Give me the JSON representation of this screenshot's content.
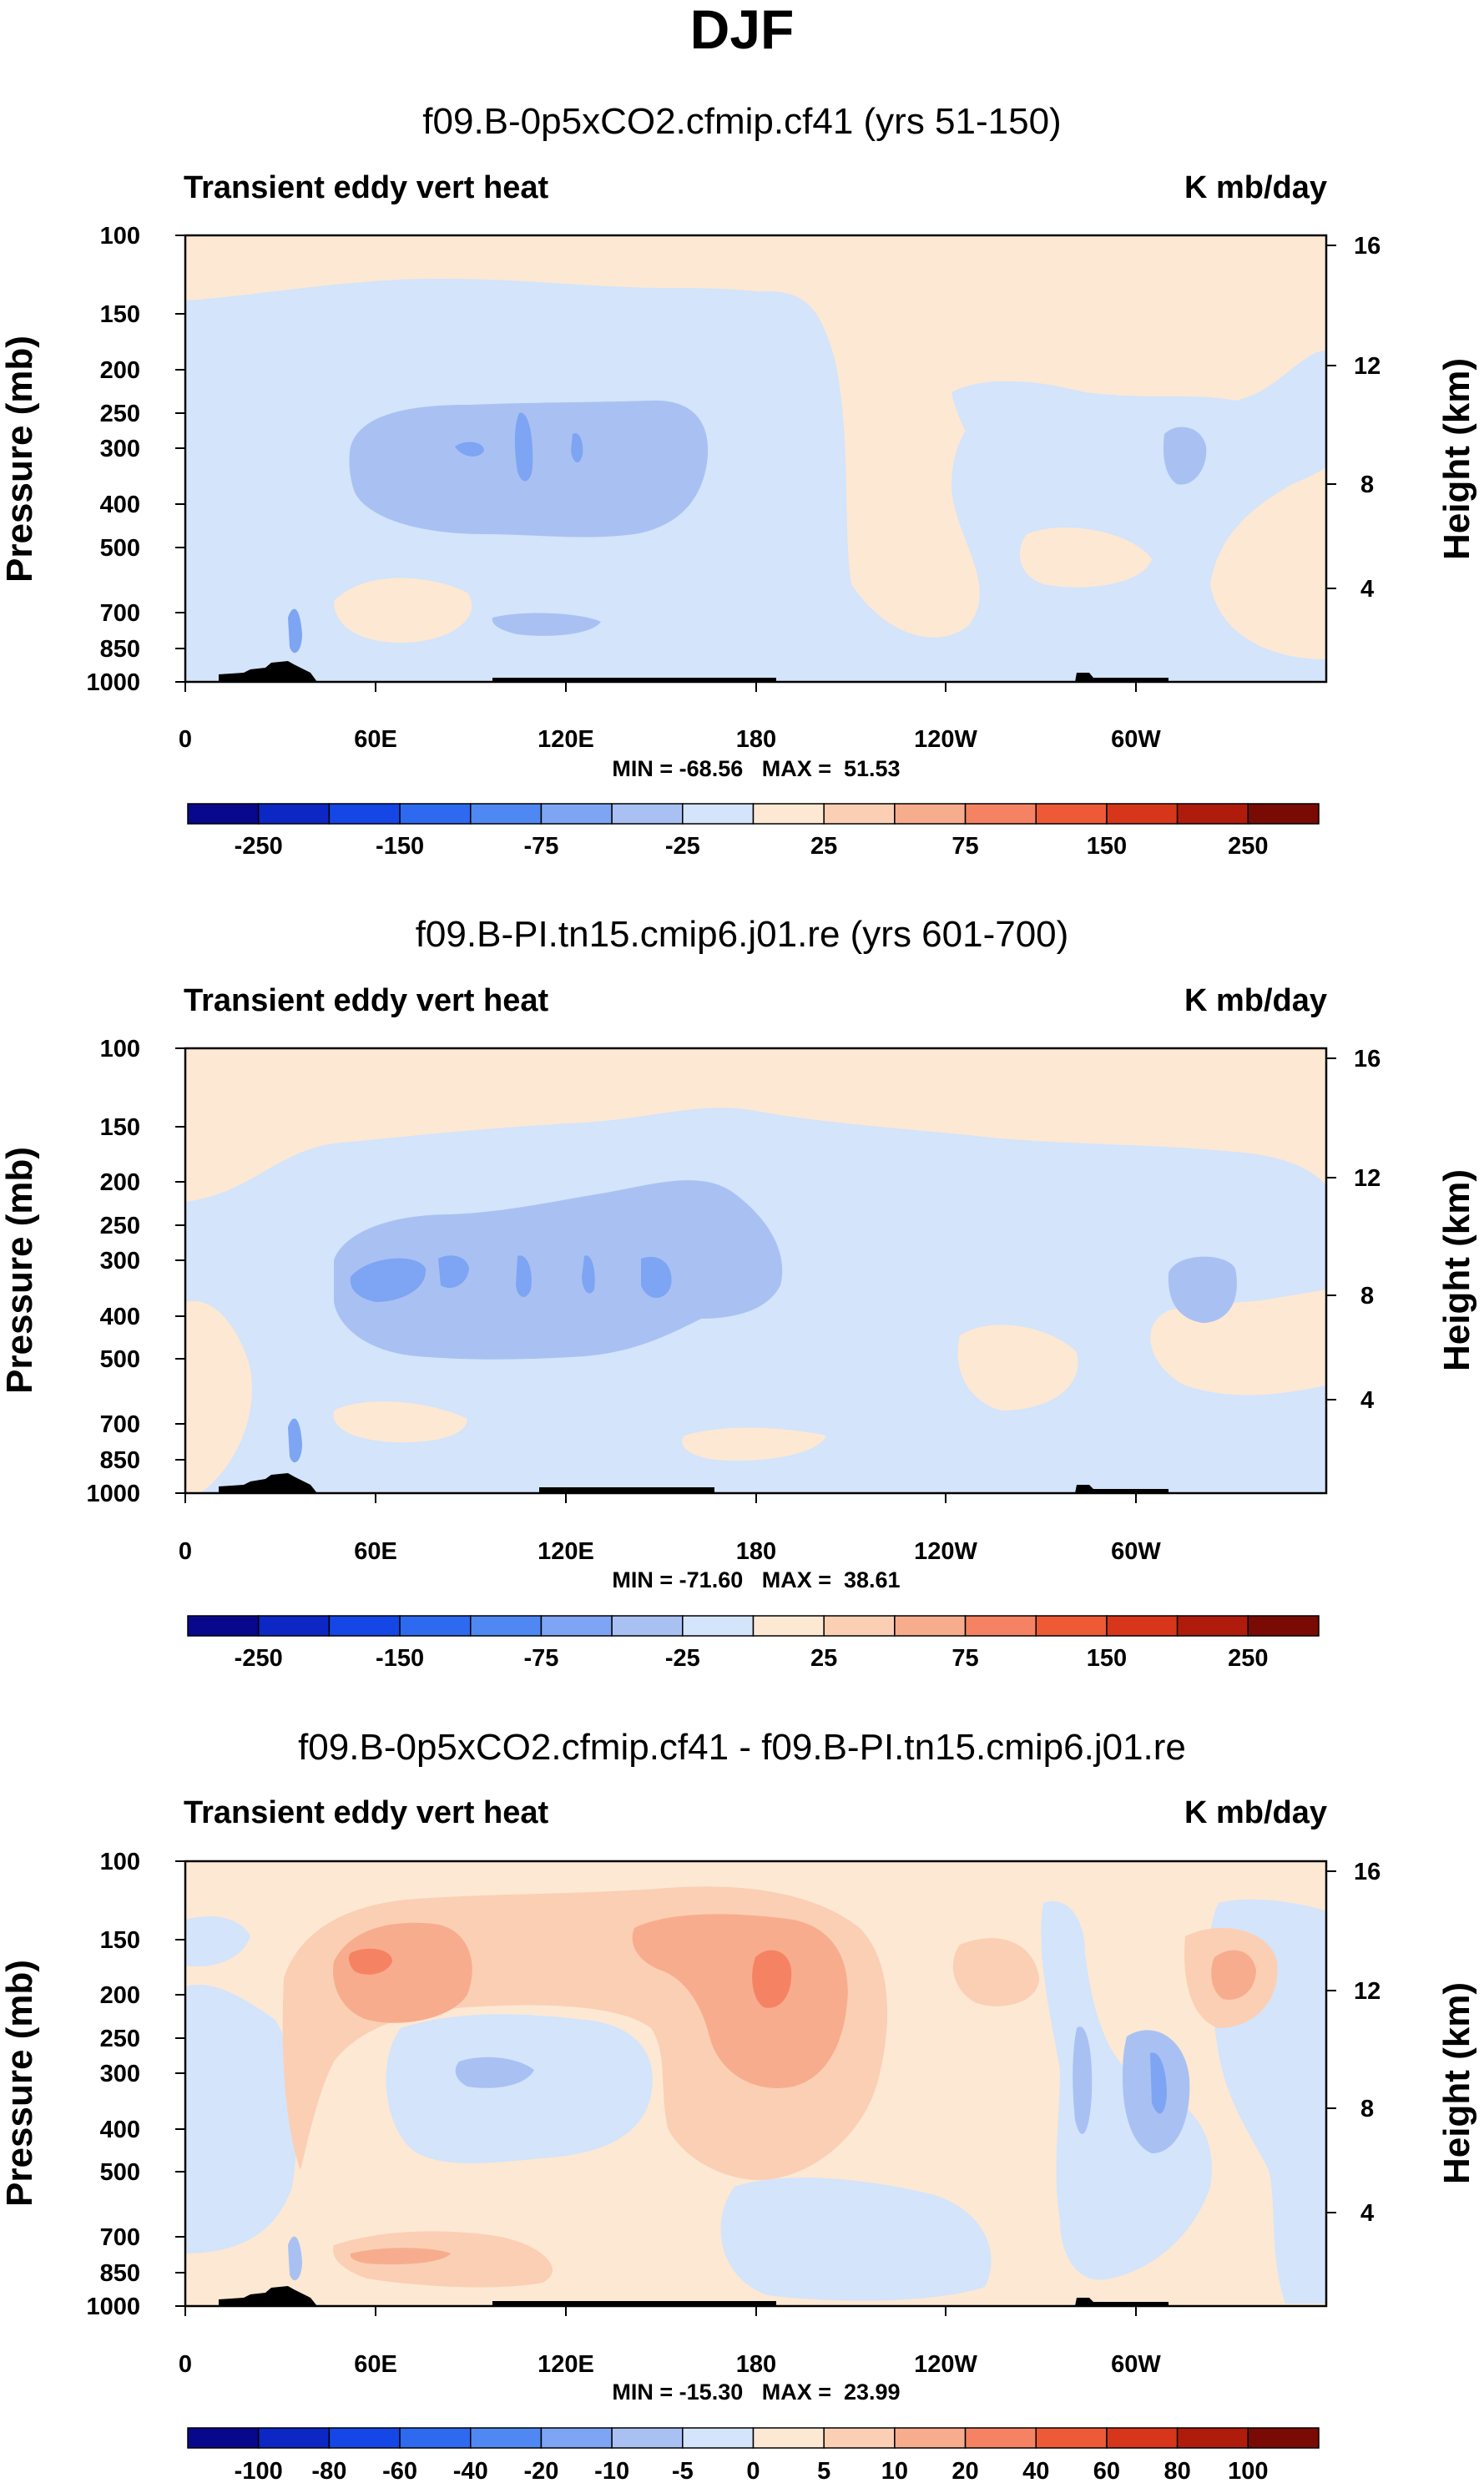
{
  "figure_title": "DJF",
  "panels": [
    {
      "title": "f09.B-0p5xCO2.cfmip.cf41 (yrs 51-150)",
      "left_label": "Transient eddy vert heat",
      "right_label": "K mb/day",
      "y_label": "Pressure (mb)",
      "y2_label": "Height (km)",
      "minmax": "MIN = -68.56   MAX =  51.53"
    },
    {
      "title": "f09.B-PI.tn15.cmip6.j01.re (yrs 601-700)",
      "left_label": "Transient eddy vert heat",
      "right_label": "K mb/day",
      "y_label": "Pressure (mb)",
      "y2_label": "Height (km)",
      "minmax": "MIN = -71.60   MAX =  38.61"
    },
    {
      "title": "f09.B-0p5xCO2.cfmip.cf41 - f09.B-PI.tn15.cmip6.j01.re",
      "left_label": "Transient eddy vert heat",
      "right_label": "K mb/day",
      "y_label": "Pressure (mb)",
      "y2_label": "Height (km)",
      "minmax": "MIN = -15.30   MAX =  23.99"
    }
  ],
  "chart_data": [
    {
      "type": "heatmap",
      "title": "f09.B-0p5xCO2.cfmip.cf41 (yrs 51-150)",
      "xlabel": "",
      "ylabel": "Pressure (mb)",
      "y2label": "Height (km)",
      "x_ticks": [
        "0",
        "60E",
        "120E",
        "180",
        "120W",
        "60W"
      ],
      "x_tick_values": [
        0,
        60,
        120,
        180,
        240,
        300
      ],
      "xlim": [
        0,
        360
      ],
      "y_ticks": [
        100,
        150,
        200,
        250,
        300,
        400,
        500,
        700,
        850,
        1000
      ],
      "ylim": [
        1000,
        100
      ],
      "y2_ticks": [
        16,
        12,
        8,
        4
      ],
      "units": "K mb/day",
      "min": -68.56,
      "max": 51.53,
      "levels": [
        -250,
        -200,
        -150,
        -100,
        -75,
        -50,
        -25,
        0,
        25,
        50,
        75,
        100,
        150,
        200,
        250
      ],
      "colorbar_labels": [
        "-250",
        "-150",
        "-75",
        "-25",
        "25",
        "75",
        "150",
        "250"
      ]
    },
    {
      "type": "heatmap",
      "title": "f09.B-PI.tn15.cmip6.j01.re (yrs 601-700)",
      "xlabel": "",
      "ylabel": "Pressure (mb)",
      "y2label": "Height (km)",
      "x_ticks": [
        "0",
        "60E",
        "120E",
        "180",
        "120W",
        "60W"
      ],
      "x_tick_values": [
        0,
        60,
        120,
        180,
        240,
        300
      ],
      "xlim": [
        0,
        360
      ],
      "y_ticks": [
        100,
        150,
        200,
        250,
        300,
        400,
        500,
        700,
        850,
        1000
      ],
      "ylim": [
        1000,
        100
      ],
      "y2_ticks": [
        16,
        12,
        8,
        4
      ],
      "units": "K mb/day",
      "min": -71.6,
      "max": 38.61,
      "levels": [
        -250,
        -200,
        -150,
        -100,
        -75,
        -50,
        -25,
        0,
        25,
        50,
        75,
        100,
        150,
        200,
        250
      ],
      "colorbar_labels": [
        "-250",
        "-150",
        "-75",
        "-25",
        "25",
        "75",
        "150",
        "250"
      ]
    },
    {
      "type": "heatmap",
      "title": "f09.B-0p5xCO2.cfmip.cf41 - f09.B-PI.tn15.cmip6.j01.re",
      "xlabel": "",
      "ylabel": "Pressure (mb)",
      "y2label": "Height (km)",
      "x_ticks": [
        "0",
        "60E",
        "120E",
        "180",
        "120W",
        "60W"
      ],
      "x_tick_values": [
        0,
        60,
        120,
        180,
        240,
        300
      ],
      "xlim": [
        0,
        360
      ],
      "y_ticks": [
        100,
        150,
        200,
        250,
        300,
        400,
        500,
        700,
        850,
        1000
      ],
      "ylim": [
        1000,
        100
      ],
      "y2_ticks": [
        16,
        12,
        8,
        4
      ],
      "units": "K mb/day",
      "min": -15.3,
      "max": 23.99,
      "levels": [
        -100,
        -80,
        -60,
        -40,
        -20,
        -10,
        -5,
        0,
        5,
        10,
        20,
        40,
        60,
        80,
        100
      ],
      "colorbar_labels": [
        "-100",
        "-80",
        "-60",
        "-40",
        "-20",
        "-10",
        "-5",
        "0",
        "5",
        "10",
        "20",
        "40",
        "60",
        "80",
        "100"
      ]
    }
  ],
  "colors": {
    "palette": [
      "#08088c",
      "#0c27c4",
      "#1546e6",
      "#2d6af0",
      "#4f88f2",
      "#7ea4f4",
      "#a9c1f2",
      "#d3e4fb",
      "#fde8d3",
      "#fbcfb4",
      "#f8ac8e",
      "#f58363",
      "#ee5a36",
      "#d8361a",
      "#b01c0c",
      "#7a0a04"
    ],
    "terrain": "#000000"
  },
  "features": [
    {
      "panel": 0,
      "level": "-1",
      "lon": [
        0,
        360
      ],
      "p": [
        100,
        165
      ]
    },
    {
      "panel": 0,
      "level": "-25",
      "lon": [
        0,
        360
      ],
      "p": [
        165,
        1000
      ]
    },
    {
      "panel": 0,
      "level": "-25",
      "lon": [
        190,
        360
      ],
      "p": [
        200,
        420
      ]
    },
    {
      "panel": 0,
      "level": "-75",
      "lon": [
        52,
        166
      ],
      "p": [
        225,
        430
      ]
    },
    {
      "panel": 1,
      "level": "-25",
      "lon": [
        0,
        360
      ],
      "p": [
        165,
        1000
      ]
    },
    {
      "panel": 1,
      "level": "-75",
      "lon": [
        48,
        190
      ],
      "p": [
        225,
        430
      ]
    },
    {
      "panel": 2,
      "level": "10",
      "lon": [
        45,
        210
      ],
      "p": [
        180,
        400
      ]
    },
    {
      "panel": 2,
      "level": "20",
      "lon": [
        140,
        210
      ],
      "p": [
        220,
        350
      ]
    },
    {
      "panel": 2,
      "level": "-10",
      "lon": [
        80,
        130
      ],
      "p": [
        330,
        460
      ]
    },
    {
      "panel": 2,
      "level": "-20",
      "lon": [
        290,
        320
      ],
      "p": [
        300,
        650
      ]
    }
  ]
}
